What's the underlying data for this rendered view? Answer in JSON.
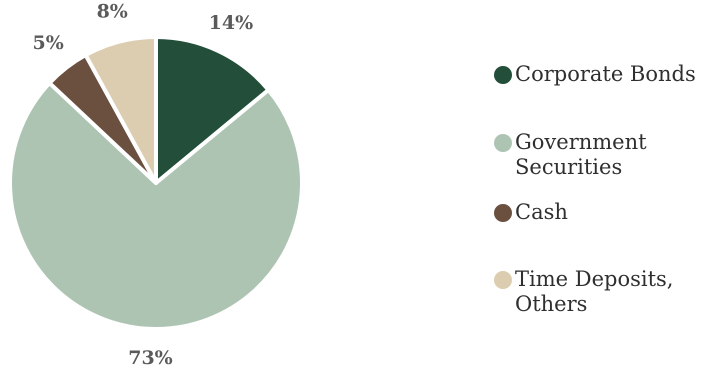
{
  "chart_data": {
    "type": "pie",
    "slices": [
      {
        "name": "Corporate Bonds",
        "value": 14,
        "label": "14%",
        "color": "#234f3a"
      },
      {
        "name": "Government Securities",
        "value": 73,
        "label": "73%",
        "color": "#adc4b3"
      },
      {
        "name": "Cash",
        "value": 5,
        "label": "5%",
        "color": "#6b5040"
      },
      {
        "name": "Time Deposits, Others",
        "value": 8,
        "label": "8%",
        "color": "#ddcdb0"
      }
    ],
    "legend": {
      "placement": "right",
      "items": [
        {
          "line1": "Corporate Bonds",
          "line2": ""
        },
        {
          "line1": "Government",
          "line2": "Securities"
        },
        {
          "line1": "Cash",
          "line2": ""
        },
        {
          "line1": "Time Deposits,",
          "line2": "Others"
        }
      ]
    }
  }
}
